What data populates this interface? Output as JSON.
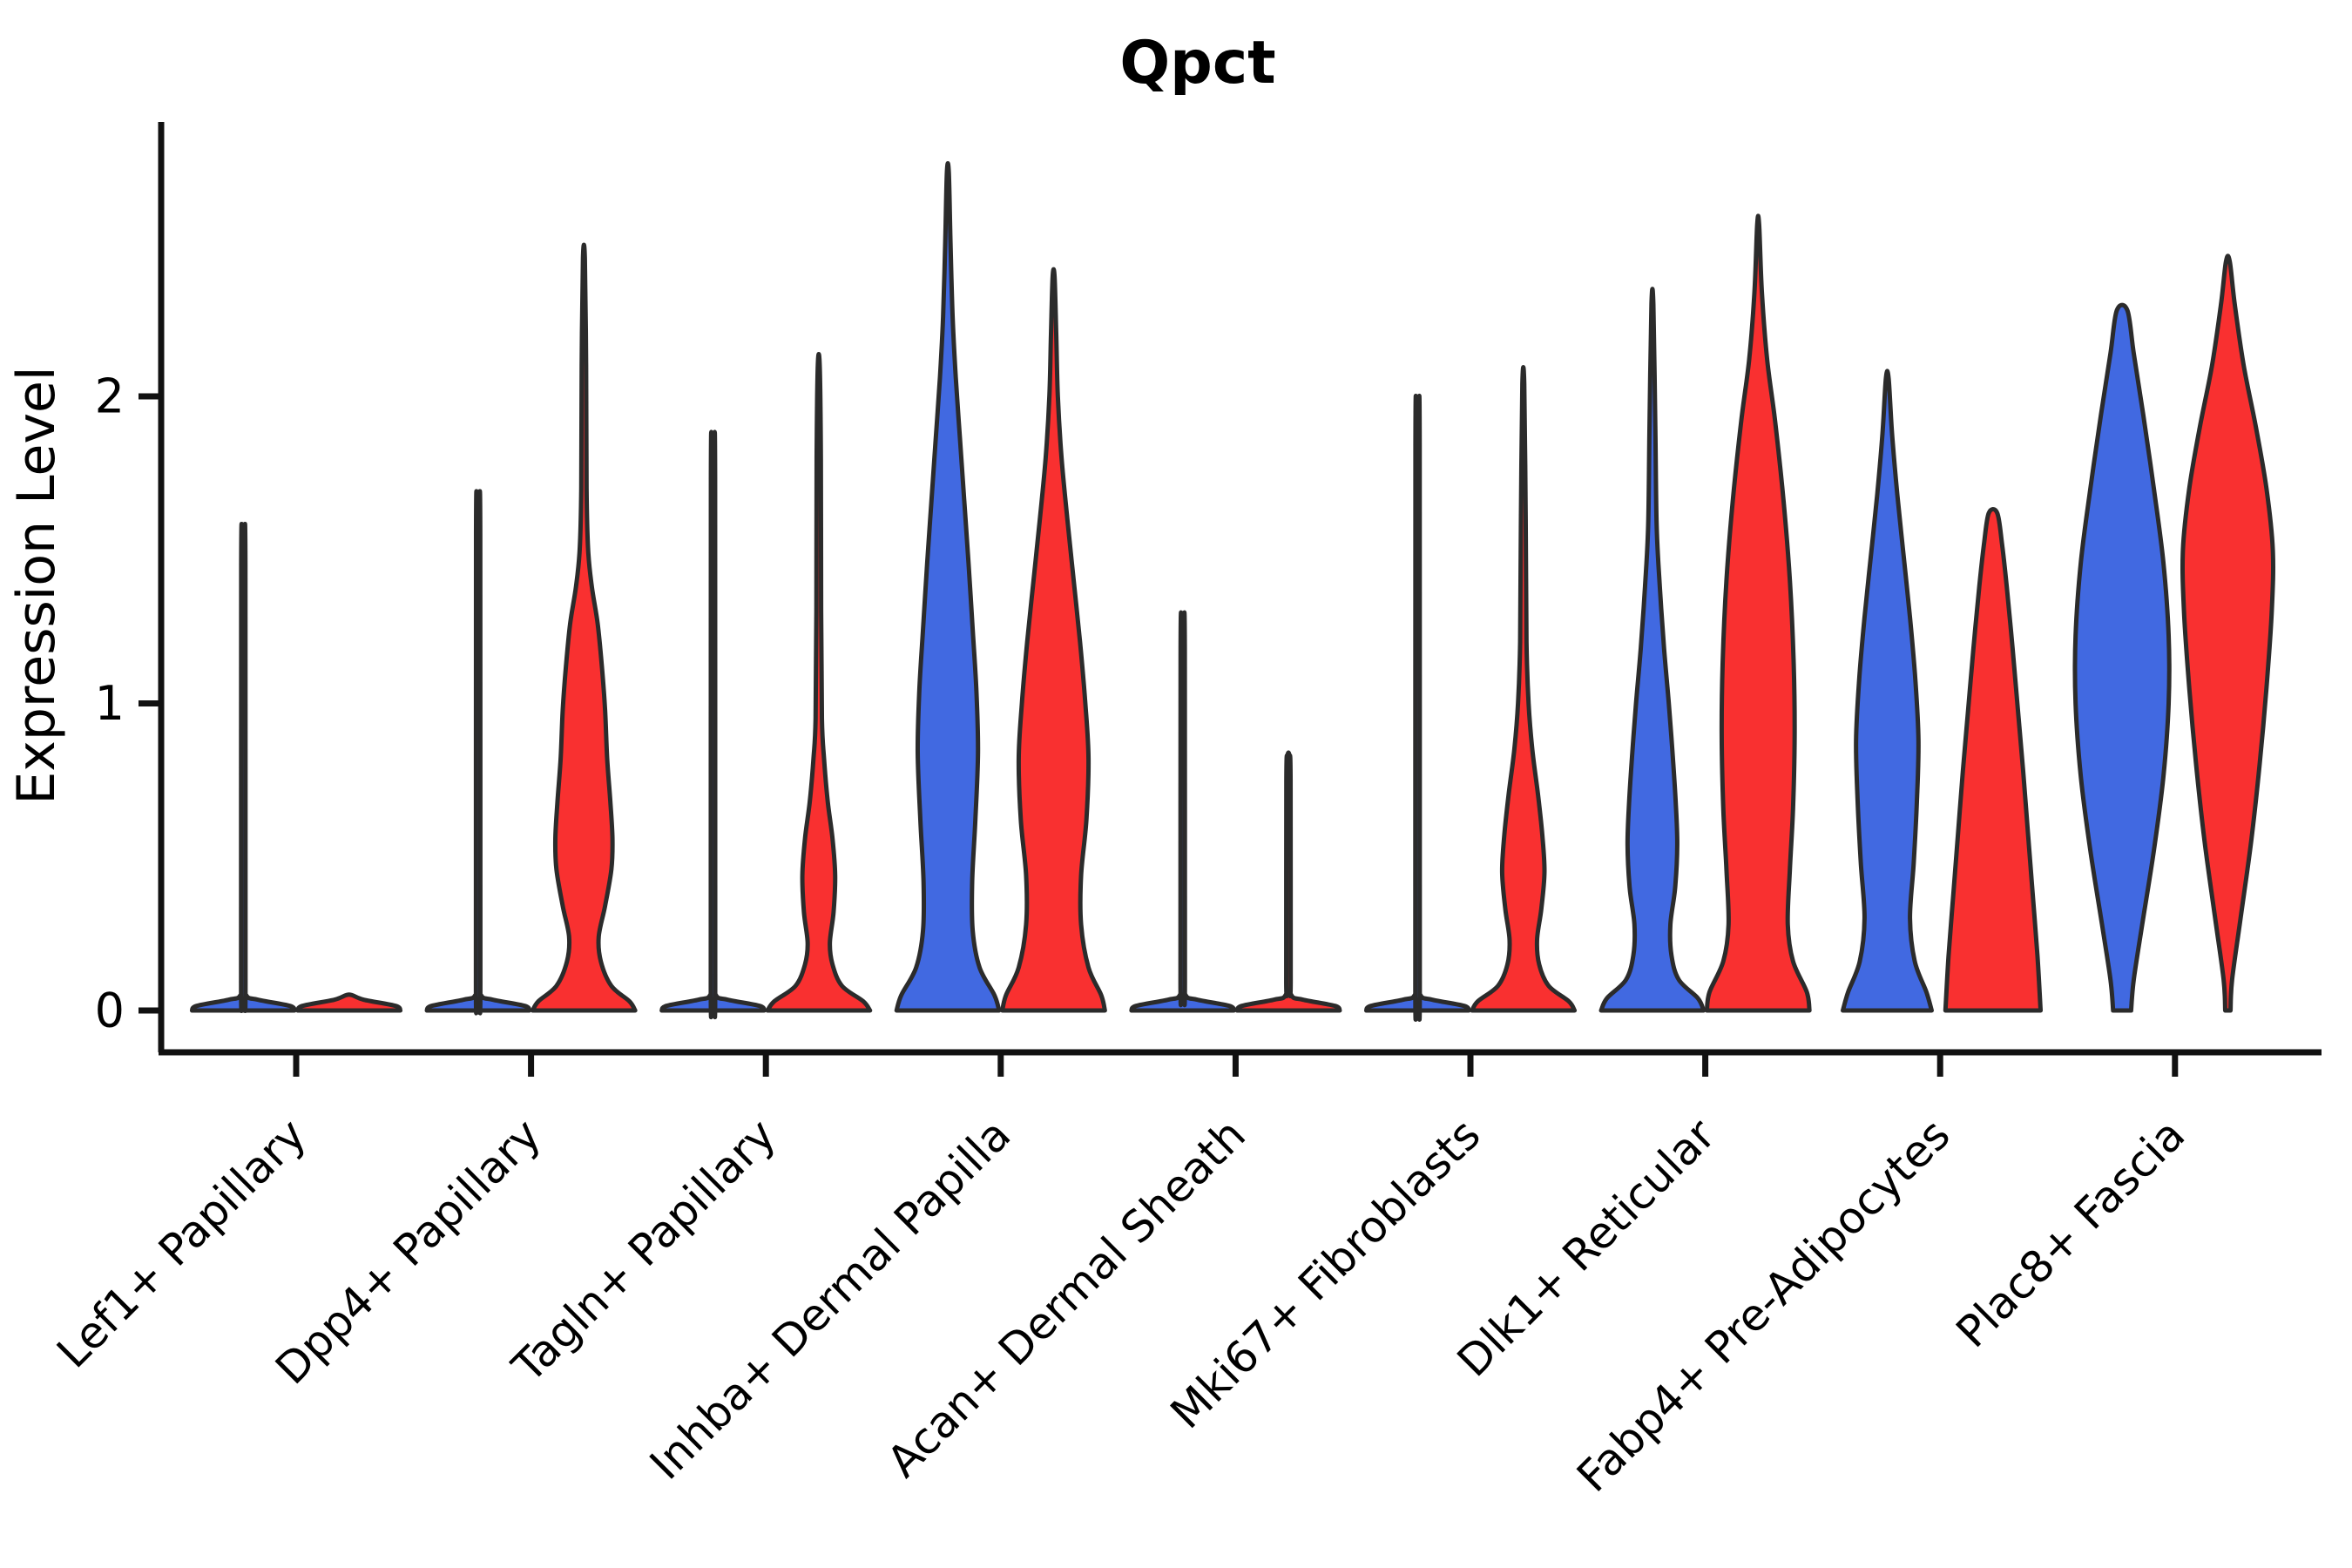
{
  "title": "Qpct",
  "y_axis": {
    "label": "Expression Level"
  },
  "colors": {
    "blue_fill": "#4169E1",
    "red_fill": "#F93030",
    "outline": "#2b2b2b",
    "axis": "#111111"
  },
  "chart_data": {
    "type": "violin",
    "title": "Qpct",
    "xlabel": "",
    "ylabel": "Expression Level",
    "ylim": [
      0,
      2.89
    ],
    "yticks": [
      0,
      1,
      2
    ],
    "grid": false,
    "legend": "none",
    "split_violins_per_category": 2,
    "categories": [
      "Lef1+ Papillary",
      "Dpp4+ Papillary",
      "Tagln+ Papillary",
      "Inhba+ Dermal Papilla",
      "Acan+ Dermal Sheath",
      "Mki67+ Fibroblasts",
      "Dlk1+ Reticular",
      "Fabp4+ Pre-Adipocytes",
      "Plac8+ Fascia"
    ],
    "series": [
      {
        "name": "blue",
        "color": "#4169E1",
        "max_expression": [
          1.55,
          1.65,
          1.83,
          2.73,
          1.28,
          1.94,
          2.3,
          2.06,
          2.28
        ]
      },
      {
        "name": "red",
        "color": "#F93030",
        "max_expression": [
          0.05,
          2.45,
          2.1,
          2.39,
          0.83,
          2.04,
          2.56,
          1.62,
          2.44
        ]
      }
    ],
    "violin_profiles": {
      "comment_units": "each profile point is [expression_value, relative_half_width 0..1]; most mass at 0 renders as flat pancake; thin tails render as spikes",
      "blue": [
        [
          [
            0,
            0.97
          ],
          [
            0.015,
            0.88
          ],
          [
            0.035,
            0.28
          ],
          [
            0.05,
            0.055
          ],
          [
            0.12,
            0.042
          ],
          [
            1.45,
            0.04
          ],
          [
            1.55,
            0.018
          ]
        ],
        [
          [
            0,
            0.97
          ],
          [
            0.015,
            0.88
          ],
          [
            0.035,
            0.28
          ],
          [
            0.05,
            0.055
          ],
          [
            0.12,
            0.042
          ],
          [
            1.55,
            0.04
          ],
          [
            1.65,
            0.018
          ]
        ],
        [
          [
            0,
            0.97
          ],
          [
            0.015,
            0.88
          ],
          [
            0.035,
            0.28
          ],
          [
            0.05,
            0.055
          ],
          [
            0.12,
            0.042
          ],
          [
            1.73,
            0.04
          ],
          [
            1.83,
            0.018
          ]
        ],
        [
          [
            0,
            0.97
          ],
          [
            0.05,
            0.88
          ],
          [
            0.14,
            0.6
          ],
          [
            0.26,
            0.47
          ],
          [
            0.42,
            0.46
          ],
          [
            0.62,
            0.52
          ],
          [
            0.84,
            0.57
          ],
          [
            1.04,
            0.54
          ],
          [
            1.24,
            0.47
          ],
          [
            1.46,
            0.39
          ],
          [
            1.66,
            0.31
          ],
          [
            1.86,
            0.23
          ],
          [
            2.06,
            0.15
          ],
          [
            2.26,
            0.09
          ],
          [
            2.5,
            0.05
          ],
          [
            2.73,
            0.018
          ]
        ],
        [
          [
            0,
            0.97
          ],
          [
            0.015,
            0.88
          ],
          [
            0.035,
            0.28
          ],
          [
            0.05,
            0.055
          ],
          [
            0.12,
            0.042
          ],
          [
            1.18,
            0.04
          ],
          [
            1.28,
            0.018
          ]
        ],
        [
          [
            0,
            0.97
          ],
          [
            0.015,
            0.88
          ],
          [
            0.035,
            0.28
          ],
          [
            0.05,
            0.055
          ],
          [
            0.12,
            0.042
          ],
          [
            1.84,
            0.04
          ],
          [
            1.94,
            0.018
          ]
        ],
        [
          [
            0,
            0.97
          ],
          [
            0.04,
            0.86
          ],
          [
            0.1,
            0.5
          ],
          [
            0.18,
            0.36
          ],
          [
            0.28,
            0.34
          ],
          [
            0.4,
            0.43
          ],
          [
            0.54,
            0.47
          ],
          [
            0.68,
            0.44
          ],
          [
            0.84,
            0.38
          ],
          [
            1.0,
            0.31
          ],
          [
            1.18,
            0.22
          ],
          [
            1.38,
            0.14
          ],
          [
            1.58,
            0.08
          ],
          [
            1.9,
            0.055
          ],
          [
            2.3,
            0.018
          ]
        ],
        [
          [
            0,
            0.84
          ],
          [
            0.06,
            0.74
          ],
          [
            0.16,
            0.52
          ],
          [
            0.3,
            0.43
          ],
          [
            0.48,
            0.5
          ],
          [
            0.68,
            0.56
          ],
          [
            0.88,
            0.59
          ],
          [
            1.08,
            0.53
          ],
          [
            1.28,
            0.43
          ],
          [
            1.48,
            0.31
          ],
          [
            1.68,
            0.19
          ],
          [
            1.88,
            0.09
          ],
          [
            2.06,
            0.025
          ]
        ],
        [
          [
            0,
            0.17
          ],
          [
            0.1,
            0.22
          ],
          [
            0.28,
            0.38
          ],
          [
            0.52,
            0.6
          ],
          [
            0.76,
            0.78
          ],
          [
            1.0,
            0.88
          ],
          [
            1.22,
            0.88
          ],
          [
            1.46,
            0.78
          ],
          [
            1.7,
            0.6
          ],
          [
            1.94,
            0.4
          ],
          [
            2.14,
            0.22
          ],
          [
            2.28,
            0.1
          ]
        ]
      ],
      "red": [
        [
          [
            0,
            0.97
          ],
          [
            0.015,
            0.88
          ],
          [
            0.035,
            0.28
          ],
          [
            0.05,
            0.055
          ]
        ],
        [
          [
            0,
            0.97
          ],
          [
            0.03,
            0.86
          ],
          [
            0.08,
            0.52
          ],
          [
            0.16,
            0.32
          ],
          [
            0.24,
            0.28
          ],
          [
            0.34,
            0.4
          ],
          [
            0.46,
            0.52
          ],
          [
            0.56,
            0.54
          ],
          [
            0.68,
            0.5
          ],
          [
            0.82,
            0.44
          ],
          [
            0.98,
            0.4
          ],
          [
            1.12,
            0.34
          ],
          [
            1.26,
            0.26
          ],
          [
            1.38,
            0.15
          ],
          [
            1.5,
            0.08
          ],
          [
            1.7,
            0.05
          ],
          [
            2.1,
            0.042
          ],
          [
            2.45,
            0.018
          ]
        ],
        [
          [
            0,
            0.97
          ],
          [
            0.03,
            0.84
          ],
          [
            0.08,
            0.44
          ],
          [
            0.15,
            0.26
          ],
          [
            0.22,
            0.21
          ],
          [
            0.32,
            0.28
          ],
          [
            0.44,
            0.31
          ],
          [
            0.56,
            0.26
          ],
          [
            0.68,
            0.17
          ],
          [
            0.82,
            0.1
          ],
          [
            0.95,
            0.06
          ],
          [
            1.3,
            0.045
          ],
          [
            1.8,
            0.04
          ],
          [
            2.1,
            0.018
          ]
        ],
        [
          [
            0,
            0.97
          ],
          [
            0.05,
            0.9
          ],
          [
            0.14,
            0.66
          ],
          [
            0.28,
            0.52
          ],
          [
            0.44,
            0.52
          ],
          [
            0.62,
            0.62
          ],
          [
            0.82,
            0.66
          ],
          [
            1.0,
            0.6
          ],
          [
            1.2,
            0.5
          ],
          [
            1.4,
            0.38
          ],
          [
            1.6,
            0.26
          ],
          [
            1.8,
            0.15
          ],
          [
            2.0,
            0.08
          ],
          [
            2.2,
            0.05
          ],
          [
            2.39,
            0.018
          ]
        ],
        [
          [
            0,
            0.97
          ],
          [
            0.015,
            0.88
          ],
          [
            0.035,
            0.28
          ],
          [
            0.05,
            0.055
          ],
          [
            0.12,
            0.042
          ],
          [
            0.75,
            0.04
          ],
          [
            0.83,
            0.018
          ]
        ],
        [
          [
            0,
            0.97
          ],
          [
            0.03,
            0.86
          ],
          [
            0.08,
            0.48
          ],
          [
            0.15,
            0.3
          ],
          [
            0.23,
            0.26
          ],
          [
            0.33,
            0.34
          ],
          [
            0.45,
            0.4
          ],
          [
            0.57,
            0.36
          ],
          [
            0.7,
            0.28
          ],
          [
            0.85,
            0.17
          ],
          [
            1.0,
            0.1
          ],
          [
            1.2,
            0.06
          ],
          [
            1.6,
            0.045
          ],
          [
            2.04,
            0.018
          ]
        ],
        [
          [
            0,
            0.97
          ],
          [
            0.06,
            0.92
          ],
          [
            0.16,
            0.66
          ],
          [
            0.28,
            0.56
          ],
          [
            0.46,
            0.6
          ],
          [
            0.66,
            0.66
          ],
          [
            0.9,
            0.69
          ],
          [
            1.14,
            0.67
          ],
          [
            1.4,
            0.6
          ],
          [
            1.66,
            0.48
          ],
          [
            1.92,
            0.32
          ],
          [
            2.12,
            0.17
          ],
          [
            2.34,
            0.07
          ],
          [
            2.56,
            0.018
          ]
        ],
        [
          [
            0,
            0.9
          ],
          [
            0.18,
            0.84
          ],
          [
            0.38,
            0.75
          ],
          [
            0.58,
            0.66
          ],
          [
            0.78,
            0.57
          ],
          [
            0.98,
            0.47
          ],
          [
            1.18,
            0.37
          ],
          [
            1.38,
            0.26
          ],
          [
            1.52,
            0.17
          ],
          [
            1.62,
            0.08
          ]
        ],
        [
          [
            0,
            0.05
          ],
          [
            0.1,
            0.08
          ],
          [
            0.3,
            0.24
          ],
          [
            0.55,
            0.44
          ],
          [
            0.8,
            0.6
          ],
          [
            1.05,
            0.73
          ],
          [
            1.3,
            0.83
          ],
          [
            1.5,
            0.85
          ],
          [
            1.7,
            0.73
          ],
          [
            1.9,
            0.53
          ],
          [
            2.1,
            0.3
          ],
          [
            2.3,
            0.13
          ],
          [
            2.44,
            0.035
          ]
        ]
      ]
    }
  }
}
